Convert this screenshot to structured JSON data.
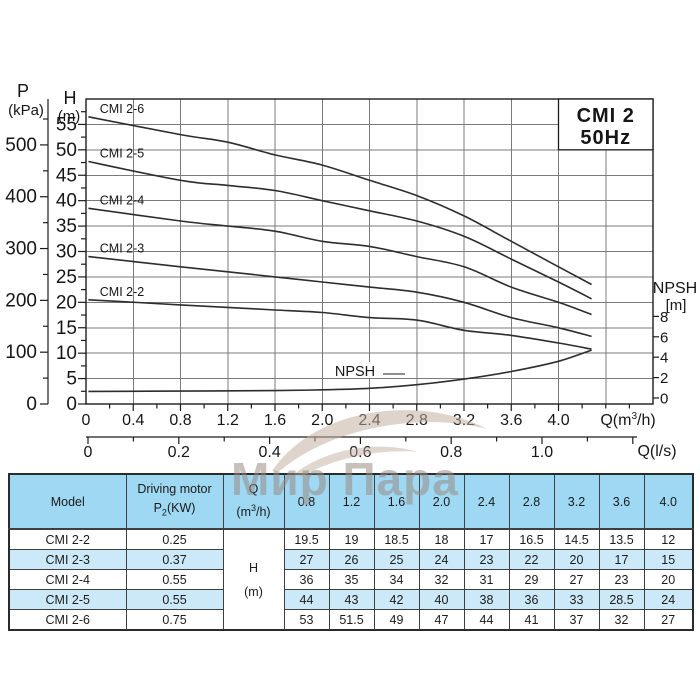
{
  "colors": {
    "grid": "#7b7b7b",
    "axis": "#1c1c1c",
    "curve": "#2d2d2d",
    "text": "#161616",
    "table_header_bg": "#9ed8f2",
    "table_alt_bg": "#cbe9f8",
    "table_row_bg": "#ffffff",
    "table_border": "#3f3f3f",
    "watermark": "#9a8d84",
    "watermark_swoosh": "#c2b0a2"
  },
  "chart_data": {
    "type": "line",
    "title_lines": [
      "CMI 2",
      "50Hz"
    ],
    "p_axis": {
      "name": "P",
      "unit": "(kPa)",
      "ticks": [
        0,
        100,
        200,
        300,
        400,
        500
      ],
      "minor_step": 50
    },
    "h_axis": {
      "name": "H",
      "unit": "(m)",
      "ticks": [
        0,
        5,
        10,
        15,
        20,
        25,
        30,
        35,
        40,
        45,
        50,
        55
      ],
      "minor_step": 2.5,
      "range": [
        0,
        60
      ]
    },
    "x_axis": {
      "label_parts": {
        "pre": "Q(m",
        "sup": "3",
        "post": "/h)"
      },
      "tick_labels": [
        "0",
        "0.4",
        "0.8",
        "1.2",
        "1.6",
        "2.0",
        "2.4",
        "2.8",
        "3.2",
        "3.6",
        "4.0"
      ],
      "tick_step": 0.4,
      "minor_step": 0.2,
      "range": [
        0,
        4.8
      ]
    },
    "ls_axis": {
      "label": "Q(l/s)",
      "tick_labels": [
        "0",
        "0.2",
        "0.4",
        "0.6",
        "0.8",
        "1.0"
      ],
      "tick_step": 0.2,
      "minor_step": 0.1,
      "range": [
        0,
        1.2
      ]
    },
    "npsh_axis": {
      "name": "NPSH",
      "unit": "[m]",
      "ticks": [
        0,
        2,
        4,
        6,
        8
      ]
    },
    "series": [
      {
        "name": "CMI 2-6",
        "points": [
          [
            0.02,
            56.5
          ],
          [
            0.8,
            53
          ],
          [
            1.2,
            51.5
          ],
          [
            1.6,
            49
          ],
          [
            2.0,
            47
          ],
          [
            2.4,
            44
          ],
          [
            2.8,
            41
          ],
          [
            3.2,
            37
          ],
          [
            3.6,
            32
          ],
          [
            4.0,
            27
          ],
          [
            4.28,
            23.5
          ]
        ]
      },
      {
        "name": "CMI 2-5",
        "points": [
          [
            0.02,
            47.7
          ],
          [
            0.8,
            44
          ],
          [
            1.2,
            43
          ],
          [
            1.6,
            42
          ],
          [
            2.0,
            40
          ],
          [
            2.4,
            38
          ],
          [
            2.8,
            36
          ],
          [
            3.2,
            33
          ],
          [
            3.6,
            28.5
          ],
          [
            4.0,
            24
          ],
          [
            4.28,
            20.7
          ]
        ]
      },
      {
        "name": "CMI 2-4",
        "points": [
          [
            0.02,
            38.5
          ],
          [
            0.8,
            36
          ],
          [
            1.2,
            35
          ],
          [
            1.6,
            34
          ],
          [
            2.0,
            32
          ],
          [
            2.4,
            31
          ],
          [
            2.8,
            29
          ],
          [
            3.2,
            27
          ],
          [
            3.6,
            23
          ],
          [
            4.0,
            20
          ],
          [
            4.28,
            17.6
          ]
        ]
      },
      {
        "name": "CMI 2-3",
        "points": [
          [
            0.02,
            29
          ],
          [
            0.8,
            27
          ],
          [
            1.2,
            26
          ],
          [
            1.6,
            25
          ],
          [
            2.0,
            24
          ],
          [
            2.4,
            23
          ],
          [
            2.8,
            22
          ],
          [
            3.2,
            20
          ],
          [
            3.6,
            17
          ],
          [
            4.0,
            15
          ],
          [
            4.28,
            13.3
          ]
        ]
      },
      {
        "name": "CMI 2-2",
        "points": [
          [
            0.02,
            20.5
          ],
          [
            0.8,
            19.5
          ],
          [
            1.2,
            19
          ],
          [
            1.6,
            18.5
          ],
          [
            2.0,
            18
          ],
          [
            2.4,
            17
          ],
          [
            2.8,
            16.5
          ],
          [
            3.2,
            14.5
          ],
          [
            3.6,
            13.5
          ],
          [
            4.0,
            12
          ],
          [
            4.28,
            10.8
          ]
        ]
      }
    ],
    "npsh_curve": {
      "label": "NPSH",
      "points": [
        [
          0.02,
          0.65
        ],
        [
          0.8,
          0.68
        ],
        [
          1.6,
          0.73
        ],
        [
          2.0,
          0.8
        ],
        [
          2.4,
          0.95
        ],
        [
          2.8,
          1.3
        ],
        [
          3.2,
          1.85
        ],
        [
          3.6,
          2.6
        ],
        [
          4.0,
          3.6
        ],
        [
          4.28,
          4.7
        ]
      ]
    }
  },
  "watermark": {
    "text": "Мир Пара"
  },
  "table": {
    "header": {
      "model": "Model",
      "motor_line1": "Driving motor",
      "motor_p": {
        "pre": "P",
        "sub": "2",
        "post": "(KW)"
      },
      "q": "Q",
      "q_unit": {
        "pre": "(m",
        "sup": "3",
        "post": "/h)"
      },
      "flow_columns": [
        "0.8",
        "1.2",
        "1.6",
        "2.0",
        "2.4",
        "2.8",
        "3.2",
        "3.6",
        "4.0"
      ]
    },
    "merged_cell": {
      "line1": "H",
      "line2": "(m)"
    },
    "rows": [
      {
        "model": "CMI 2-2",
        "power": "0.25",
        "values": [
          "19.5",
          "19",
          "18.5",
          "18",
          "17",
          "16.5",
          "14.5",
          "13.5",
          "12"
        ]
      },
      {
        "model": "CMI 2-3",
        "power": "0.37",
        "values": [
          "27",
          "26",
          "25",
          "24",
          "23",
          "22",
          "20",
          "17",
          "15"
        ]
      },
      {
        "model": "CMI 2-4",
        "power": "0.55",
        "values": [
          "36",
          "35",
          "34",
          "32",
          "31",
          "29",
          "27",
          "23",
          "20"
        ]
      },
      {
        "model": "CMI 2-5",
        "power": "0.55",
        "values": [
          "44",
          "43",
          "42",
          "40",
          "38",
          "36",
          "33",
          "28.5",
          "24"
        ]
      },
      {
        "model": "CMI 2-6",
        "power": "0.75",
        "values": [
          "53",
          "51.5",
          "49",
          "47",
          "44",
          "41",
          "37",
          "32",
          "27"
        ]
      }
    ]
  }
}
